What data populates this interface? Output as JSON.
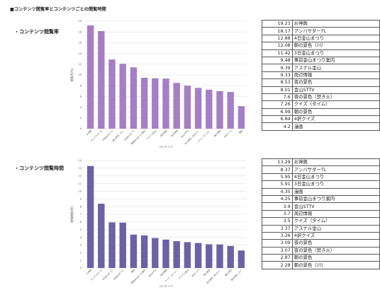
{
  "page_title": "■コンテンツ閲覧率とコンテンツごとの閲覧時間",
  "sections": [
    {
      "title": "・コンテンツ閲覧率"
    },
    {
      "title": "・コンテンツ閲覧時間"
    }
  ],
  "colors": {
    "chart1_bar": "#a57fc6",
    "chart2_bar": "#6b62a6",
    "grid": "#d9d9d9",
    "table_border": "#555555"
  },
  "chart_data": [
    {
      "type": "bar",
      "title": "",
      "xlabel": "コンテンツ",
      "ylabel": "閲覧率(%)",
      "ylim": [
        0,
        20
      ],
      "yticks": [
        0,
        2,
        4,
        6,
        8,
        10,
        12,
        14,
        16,
        18,
        20
      ],
      "grid": true,
      "categories": [
        "お神輿",
        "アンバサダーTL",
        "4日金山まつり",
        "朝の景色（川）",
        "3日金山まつり",
        "事前金山まつり案内",
        "アスナル金山",
        "周辺情報",
        "夜の景色",
        "金山STTV",
        "夜の景色（焚き火）",
        "クイズ（タイム）",
        "朝の景色",
        "4択クイズ",
        "漫画"
      ],
      "values": [
        19.23,
        18.17,
        12.88,
        12.08,
        11.42,
        9.48,
        9.39,
        9.33,
        8.53,
        8.01,
        7.6,
        7.26,
        6.99,
        6.84,
        4.2
      ]
    },
    {
      "type": "bar",
      "title": "",
      "xlabel": "コンテンツ",
      "ylabel": "閲覧時間(秒)",
      "ylim": [
        0,
        14
      ],
      "yticks": [
        0,
        1,
        2,
        3,
        4,
        5,
        6,
        7,
        8,
        9,
        10,
        11,
        12,
        13,
        14
      ],
      "grid": true,
      "categories": [
        "お神輿",
        "アンバサダーTL",
        "4日金山まつり",
        "3日金山まつり",
        "漫画",
        "事前金山まつり案内",
        "金山STTV",
        "周辺情報",
        "クイズ（タイム）",
        "アスナル金山",
        "4択クイズ",
        "夜の景色",
        "夜の景色（焚き火）",
        "朝の景色",
        "朝の景色（川）"
      ],
      "values": [
        13.29,
        8.37,
        5.95,
        5.91,
        4.35,
        4.25,
        3.9,
        3.7,
        3.5,
        3.37,
        3.26,
        3.09,
        3.07,
        2.87,
        2.28
      ]
    }
  ],
  "tables": [
    {
      "rows": [
        {
          "value": "19.23",
          "label": "お神輿"
        },
        {
          "value": "18.17",
          "label": "アンバサダーTL"
        },
        {
          "value": "12.88",
          "label": "4日金山まつり"
        },
        {
          "value": "12.08",
          "label": "朝の景色（川）"
        },
        {
          "value": "11.42",
          "label": "3日金山まつり"
        },
        {
          "value": "9.48",
          "label": "事前金山まつり案内"
        },
        {
          "value": "9.39",
          "label": "アスナル金山"
        },
        {
          "value": "9.33",
          "label": "周辺情報"
        },
        {
          "value": "8.53",
          "label": "夜の景色"
        },
        {
          "value": "8.01",
          "label": "金山STTV"
        },
        {
          "value": "7.6",
          "label": "夜の景色（焚き火）"
        },
        {
          "value": "7.26",
          "label": "クイズ（タイム）"
        },
        {
          "value": "6.99",
          "label": "朝の景色"
        },
        {
          "value": "6.84",
          "label": "4択クイズ"
        },
        {
          "value": "4.2",
          "label": "漫画"
        }
      ]
    },
    {
      "rows": [
        {
          "value": "13.29",
          "label": "お神輿"
        },
        {
          "value": "8.37",
          "label": "アンバサダーTL"
        },
        {
          "value": "5.95",
          "label": "4日金山まつり"
        },
        {
          "value": "5.91",
          "label": "3日金山まつり"
        },
        {
          "value": "4.35",
          "label": "漫画"
        },
        {
          "value": "4.25",
          "label": "事前金山まつり案内"
        },
        {
          "value": "3.9",
          "label": "金山STTV"
        },
        {
          "value": "3.7",
          "label": "周辺情報"
        },
        {
          "value": "3.5",
          "label": "クイズ（タイム）"
        },
        {
          "value": "3.37",
          "label": "アスナル金山"
        },
        {
          "value": "3.26",
          "label": "4択クイズ"
        },
        {
          "value": "3.09",
          "label": "夜の景色"
        },
        {
          "value": "3.07",
          "label": "夜の景色（焚き火）"
        },
        {
          "value": "2.87",
          "label": "朝の景色"
        },
        {
          "value": "2.28",
          "label": "朝の景色（川）"
        }
      ]
    }
  ]
}
